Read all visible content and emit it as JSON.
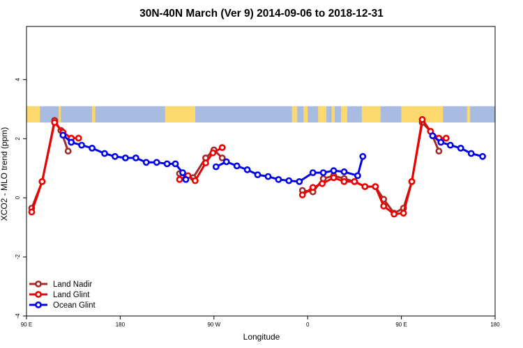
{
  "chart_data": {
    "type": "line",
    "title": "30N-40N March (Ver 9)   2014-09-06 to 2018-12-31",
    "xlabel": "Longitude",
    "ylabel": "XCO2 - MLO trend (ppm)",
    "xlim": [
      90,
      540
    ],
    "ylim": [
      -4.0,
      5.8
    ],
    "x_ticks": [
      {
        "value": 90,
        "label": "90 E"
      },
      {
        "value": 180,
        "label": "180"
      },
      {
        "value": 270,
        "label": "90 W"
      },
      {
        "value": 360,
        "label": "0"
      },
      {
        "value": 450,
        "label": "90 E"
      },
      {
        "value": 540,
        "label": "180"
      }
    ],
    "y_ticks": [
      {
        "value": -4,
        "label": "-4"
      },
      {
        "value": -2,
        "label": "-2"
      },
      {
        "value": 0,
        "label": "0"
      },
      {
        "value": 2,
        "label": "2"
      },
      {
        "value": 4,
        "label": "4"
      }
    ],
    "land_band": {
      "ymin": 2.55,
      "ymax": 3.1
    },
    "legend_position": "bottom-left",
    "series": [
      {
        "name": "Land Nadir",
        "color": "#a52a2a",
        "segments": [
          [
            [
              95,
              -0.35
            ],
            [
              105,
              0.55
            ],
            [
              117,
              2.62
            ],
            [
              123,
              2.28
            ],
            [
              130,
              1.58
            ]
          ],
          [
            [
              237,
              0.82
            ],
            [
              250,
              0.68
            ],
            [
              262,
              1.35
            ],
            [
              270,
              1.62
            ],
            [
              278,
              1.35
            ]
          ],
          [
            [
              355,
              0.25
            ],
            [
              365,
              0.2
            ],
            [
              375,
              0.65
            ],
            [
              385,
              0.75
            ],
            [
              395,
              0.65
            ],
            [
              405,
              0.55
            ],
            [
              415,
              0.38
            ],
            [
              425,
              0.38
            ],
            [
              433,
              -0.05
            ],
            [
              443,
              -0.52
            ],
            [
              452,
              -0.35
            ],
            [
              460,
              0.55
            ],
            [
              470,
              2.55
            ],
            [
              478,
              2.25
            ],
            [
              486,
              1.58
            ]
          ]
        ]
      },
      {
        "name": "Land Glint",
        "color": "#ee0000",
        "segments": [
          [
            [
              95,
              -0.48
            ],
            [
              105,
              0.55
            ],
            [
              117,
              2.55
            ],
            [
              125,
              2.22
            ],
            [
              133,
              2.02
            ],
            [
              140,
              2.02
            ]
          ],
          [
            [
              237,
              0.62
            ],
            [
              245,
              0.75
            ],
            [
              252,
              0.58
            ],
            [
              262,
              1.18
            ],
            [
              269,
              1.52
            ],
            [
              278,
              1.7
            ]
          ],
          [
            [
              355,
              0.1
            ],
            [
              365,
              0.35
            ],
            [
              374,
              0.48
            ],
            [
              385,
              0.68
            ],
            [
              395,
              0.55
            ],
            [
              405,
              0.55
            ],
            [
              415,
              0.38
            ],
            [
              425,
              0.38
            ],
            [
              433,
              -0.28
            ],
            [
              443,
              -0.55
            ],
            [
              452,
              -0.52
            ],
            [
              460,
              0.55
            ],
            [
              470,
              2.65
            ],
            [
              478,
              2.25
            ],
            [
              486,
              2.02
            ],
            [
              493,
              2.02
            ]
          ]
        ]
      },
      {
        "name": "Ocean Glint",
        "color": "#0000ee",
        "segments": [
          [
            [
              125,
              2.12
            ],
            [
              133,
              1.88
            ],
            [
              143,
              1.78
            ],
            [
              153,
              1.68
            ],
            [
              165,
              1.5
            ],
            [
              175,
              1.4
            ],
            [
              185,
              1.35
            ],
            [
              195,
              1.35
            ],
            [
              205,
              1.2
            ],
            [
              215,
              1.2
            ],
            [
              225,
              1.15
            ],
            [
              233,
              1.15
            ],
            [
              240,
              0.85
            ],
            [
              243,
              0.62
            ]
          ],
          [
            [
              272,
              1.05
            ],
            [
              282,
              1.22
            ],
            [
              292,
              1.08
            ],
            [
              302,
              0.95
            ],
            [
              312,
              0.78
            ],
            [
              322,
              0.72
            ],
            [
              332,
              0.62
            ],
            [
              342,
              0.58
            ],
            [
              352,
              0.55
            ],
            [
              365,
              0.85
            ],
            [
              375,
              0.85
            ],
            [
              385,
              0.92
            ],
            [
              395,
              0.88
            ],
            [
              408,
              0.75
            ],
            [
              413,
              1.4
            ]
          ],
          [
            [
              480,
              2.1
            ],
            [
              488,
              1.88
            ],
            [
              497,
              1.78
            ],
            [
              507,
              1.68
            ],
            [
              517,
              1.5
            ],
            [
              528,
              1.4
            ]
          ]
        ]
      }
    ]
  }
}
